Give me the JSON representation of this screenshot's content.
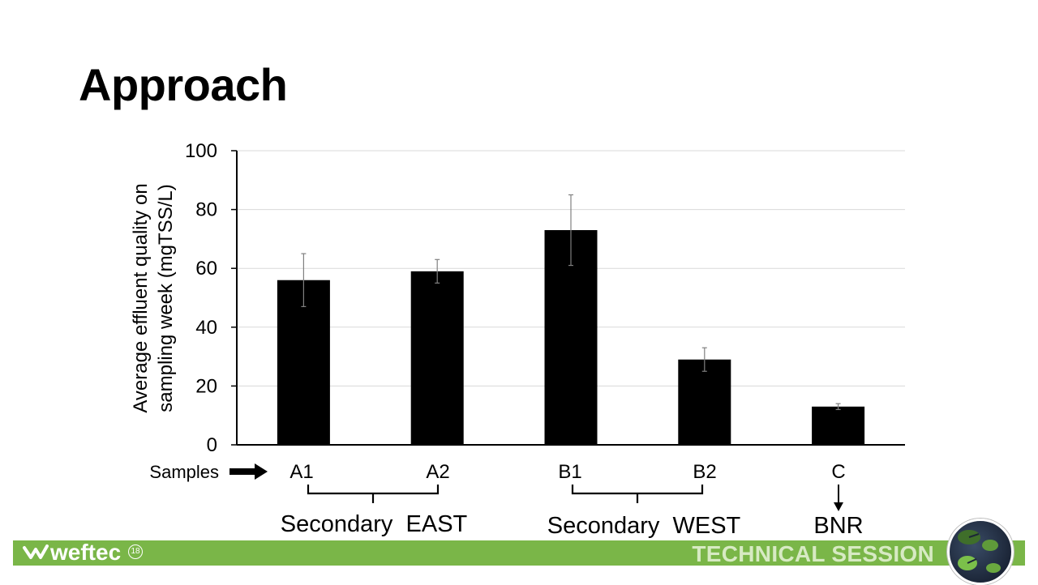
{
  "slide": {
    "title": "Approach"
  },
  "chart_data": {
    "type": "bar",
    "categories": [
      "A1",
      "A2",
      "B1",
      "B2",
      "C"
    ],
    "values": [
      56,
      59,
      73,
      29,
      13
    ],
    "error_bars": [
      {
        "low": 47,
        "high": 65
      },
      {
        "low": 55,
        "high": 63
      },
      {
        "low": 61,
        "high": 85
      },
      {
        "low": 25,
        "high": 33
      },
      {
        "low": 12,
        "high": 14
      }
    ],
    "ylabel_line1": "Average effluent quality on",
    "ylabel_line2": "sampling week (mgTSS/L)",
    "xlabel": "Samples",
    "ylim": [
      0,
      100
    ],
    "yticks": [
      0,
      20,
      40,
      60,
      80,
      100
    ],
    "grid": true,
    "bar_color": "#000000",
    "groups": [
      {
        "label": "Secondary  EAST",
        "members": [
          "A1",
          "A2"
        ]
      },
      {
        "label": "Secondary  WEST",
        "members": [
          "B1",
          "B2"
        ]
      },
      {
        "label": "BNR",
        "members": [
          "C"
        ]
      }
    ]
  },
  "footer": {
    "logo_text": "weftec",
    "logo_edition": "18",
    "session_label": "TECHNICAL SESSION",
    "bar_color": "#7ab648"
  }
}
